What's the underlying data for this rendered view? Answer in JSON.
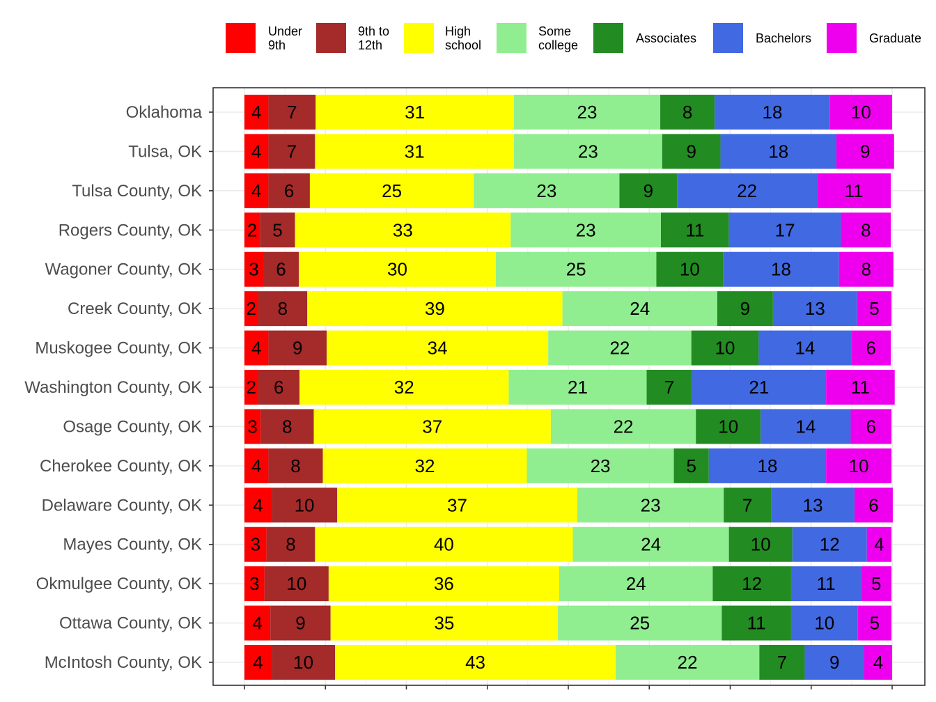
{
  "chart_data": {
    "type": "bar",
    "orientation": "horizontal",
    "stacked": true,
    "title": "",
    "xlabel": "",
    "ylabel": "",
    "xlim": [
      0,
      100
    ],
    "grid": true,
    "legend_position": "top",
    "categories": [
      "Oklahoma",
      "Tulsa, OK",
      "Tulsa County, OK",
      "Rogers County, OK",
      "Wagoner County, OK",
      "Creek County, OK",
      "Muskogee County, OK",
      "Washington County, OK",
      "Osage County, OK",
      "Cherokee County, OK",
      "Delaware County, OK",
      "Mayes County, OK",
      "Okmulgee County, OK",
      "Ottawa County, OK",
      "McIntosh County, OK"
    ],
    "series": [
      {
        "name": "Under\n9th",
        "color": "#ff0000",
        "values": [
          3.7,
          3.7,
          3.7,
          2.4,
          2.9,
          2.1,
          3.7,
          2.1,
          2.5,
          3.7,
          4.2,
          3.4,
          3.1,
          4.0,
          4.2
        ]
      },
      {
        "name": "9th to\n12th",
        "color": "#a52a2a",
        "values": [
          7.3,
          7.2,
          6.4,
          5.4,
          5.5,
          7.6,
          9.0,
          6.4,
          8.2,
          8.4,
          10.1,
          7.5,
          9.9,
          9.3,
          9.8
        ]
      },
      {
        "name": "High\nschool",
        "color": "#ffff00",
        "values": [
          30.6,
          30.7,
          25.3,
          33.3,
          30.4,
          39.4,
          34.2,
          32.3,
          36.6,
          31.5,
          37.1,
          39.8,
          35.6,
          35.1,
          43.3
        ]
      },
      {
        "name": "Some\ncollege",
        "color": "#90ee90",
        "values": [
          22.6,
          22.9,
          22.5,
          23.2,
          24.8,
          23.9,
          22.1,
          21.3,
          22.4,
          22.7,
          22.6,
          24.1,
          23.7,
          25.3,
          22.2
        ]
      },
      {
        "name": "Associates",
        "color": "#228b22",
        "values": [
          8.4,
          9.0,
          8.9,
          10.5,
          10.3,
          8.6,
          10.4,
          7.0,
          10.0,
          5.4,
          7.3,
          9.8,
          12.1,
          10.7,
          7.0
        ]
      },
      {
        "name": "Bachelors",
        "color": "#4169e1",
        "values": [
          17.8,
          17.9,
          21.6,
          17.3,
          17.9,
          13.0,
          14.3,
          20.7,
          13.9,
          18.1,
          12.9,
          11.5,
          10.8,
          10.3,
          9.2
        ]
      },
      {
        "name": "Graduate",
        "color": "#ee00ee",
        "values": [
          9.6,
          8.9,
          11.4,
          7.7,
          8.4,
          5.3,
          6.1,
          10.6,
          6.3,
          10.1,
          5.9,
          3.8,
          4.7,
          5.2,
          4.3
        ]
      }
    ]
  }
}
